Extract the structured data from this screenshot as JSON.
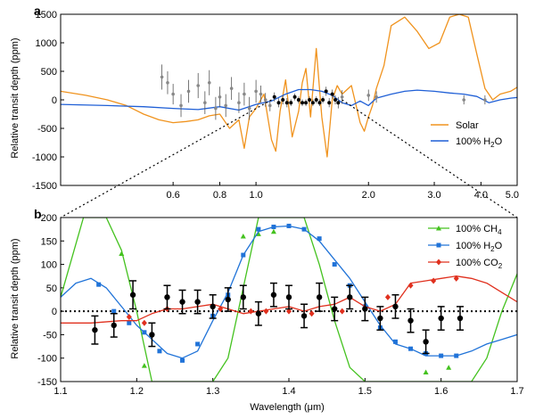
{
  "chart_data": [
    {
      "type": "line",
      "panel_label": "a",
      "xlabel": "",
      "ylabel": "Relative transit depth (ppm)",
      "xscale": "log",
      "xlim": [
        0.3,
        5.0
      ],
      "ylim": [
        -1500,
        1500
      ],
      "xticks": [
        0.6,
        0.8,
        1.0,
        2.0,
        3.0,
        4.0,
        5.0
      ],
      "xtick_labels": [
        "0.6",
        "0.8",
        "1.0",
        "2.0",
        "3.0",
        "4.0",
        "5.0"
      ],
      "yticks": [
        -1500,
        -1000,
        -500,
        0,
        500,
        1000,
        1500
      ],
      "legend_position": "bottom-right",
      "series": [
        {
          "name": "Solar",
          "color": "#f0931e",
          "x": [
            0.3,
            0.35,
            0.4,
            0.45,
            0.5,
            0.55,
            0.6,
            0.65,
            0.7,
            0.75,
            0.8,
            0.85,
            0.9,
            0.93,
            0.96,
            1.0,
            1.05,
            1.1,
            1.13,
            1.16,
            1.2,
            1.25,
            1.3,
            1.33,
            1.36,
            1.4,
            1.45,
            1.5,
            1.55,
            1.6,
            1.65,
            1.7,
            1.8,
            1.9,
            1.95,
            2.0,
            2.05,
            2.1,
            2.2,
            2.3,
            2.5,
            2.7,
            2.9,
            3.1,
            3.3,
            3.5,
            3.7,
            3.9,
            4.1,
            4.3,
            4.5,
            4.8,
            5.0
          ],
          "y": [
            150,
            80,
            0,
            -100,
            -250,
            -350,
            -400,
            -380,
            -350,
            -280,
            -250,
            -500,
            -350,
            -850,
            -300,
            -150,
            100,
            -700,
            -900,
            -200,
            350,
            -650,
            -200,
            300,
            550,
            -300,
            900,
            -300,
            -1000,
            0,
            250,
            100,
            250,
            -400,
            -550,
            -300,
            -100,
            200,
            600,
            1300,
            1450,
            1200,
            900,
            1000,
            1450,
            1500,
            1450,
            800,
            200,
            0,
            100,
            150,
            220
          ]
        },
        {
          "name": "100% H₂O",
          "color": "#1f5fd6",
          "x": [
            0.3,
            0.4,
            0.5,
            0.6,
            0.7,
            0.8,
            0.9,
            1.0,
            1.1,
            1.2,
            1.3,
            1.4,
            1.5,
            1.6,
            1.7,
            1.8,
            1.9,
            2.0,
            2.1,
            2.3,
            2.5,
            2.7,
            3.0,
            3.3,
            3.6,
            3.9,
            4.2,
            4.5,
            4.8,
            5.0
          ],
          "y": [
            -80,
            -100,
            -120,
            -150,
            -170,
            -120,
            -180,
            -80,
            -20,
            100,
            180,
            180,
            150,
            80,
            -50,
            -100,
            -20,
            -100,
            30,
            100,
            150,
            170,
            150,
            120,
            100,
            60,
            -50,
            0,
            30,
            40
          ]
        }
      ],
      "observations": {
        "x": [
          0.56,
          0.58,
          0.6,
          0.63,
          0.66,
          0.7,
          0.73,
          0.75,
          0.78,
          0.8,
          0.83,
          0.86,
          0.9,
          0.93,
          0.96,
          1.0,
          1.03,
          1.06,
          1.09,
          1.12,
          1.15,
          1.18,
          1.21,
          1.24,
          1.27,
          1.3,
          1.33,
          1.36,
          1.39,
          1.42,
          1.45,
          1.48,
          1.51,
          1.54,
          1.57,
          1.6,
          1.63,
          1.66,
          1.7,
          2.0,
          2.1,
          3.6,
          4.1
        ],
        "y": [
          400,
          300,
          100,
          -100,
          150,
          250,
          -50,
          300,
          -150,
          50,
          -100,
          200,
          -50,
          100,
          -150,
          150,
          100,
          0,
          -100,
          50,
          -50,
          0,
          -50,
          -50,
          50,
          0,
          -50,
          -50,
          0,
          -50,
          0,
          -50,
          0,
          150,
          -50,
          100,
          0,
          -50,
          50,
          80,
          50,
          0,
          0
        ],
        "yerr": [
          220,
          200,
          180,
          200,
          200,
          220,
          200,
          220,
          200,
          180,
          200,
          200,
          180,
          200,
          200,
          200,
          150,
          120,
          100,
          80,
          80,
          80,
          80,
          60,
          60,
          60,
          60,
          60,
          60,
          60,
          60,
          60,
          60,
          80,
          80,
          80,
          80,
          100,
          120,
          100,
          100,
          80,
          80
        ]
      }
    },
    {
      "type": "line",
      "panel_label": "b",
      "xlabel": "Wavelength (μm)",
      "ylabel": "Relative transit depth (ppm)",
      "xlim": [
        1.1,
        1.7
      ],
      "ylim": [
        -150,
        200
      ],
      "xticks": [
        1.1,
        1.2,
        1.3,
        1.4,
        1.5,
        1.6,
        1.7
      ],
      "yticks": [
        -150,
        -100,
        -50,
        0,
        50,
        100,
        150,
        200
      ],
      "legend_position": "top-right",
      "series": [
        {
          "name": "100% CH₄",
          "color": "#44c21f",
          "marker": "triangle",
          "x": [
            1.1,
            1.13,
            1.16,
            1.18,
            1.2,
            1.22,
            1.24,
            1.26,
            1.28,
            1.3,
            1.32,
            1.34,
            1.36,
            1.38,
            1.4,
            1.42,
            1.44,
            1.46,
            1.48,
            1.5,
            1.52,
            1.55,
            1.58,
            1.6,
            1.62,
            1.64,
            1.66,
            1.68,
            1.7
          ],
          "y": [
            30,
            200,
            200,
            130,
            0,
            -150,
            -150,
            -150,
            -150,
            -150,
            -100,
            50,
            200,
            200,
            200,
            200,
            100,
            -20,
            -120,
            -150,
            -150,
            -150,
            -150,
            -150,
            -150,
            -150,
            -100,
            0,
            80
          ],
          "marker_x": [
            1.18,
            1.21,
            1.34,
            1.36,
            1.38,
            1.58,
            1.61
          ],
          "marker_y": [
            123,
            -116,
            160,
            165,
            170,
            -130,
            -120
          ]
        },
        {
          "name": "100% H₂O",
          "color": "#2073d8",
          "marker": "square",
          "x": [
            1.1,
            1.12,
            1.14,
            1.16,
            1.18,
            1.2,
            1.22,
            1.24,
            1.26,
            1.28,
            1.3,
            1.32,
            1.34,
            1.36,
            1.38,
            1.4,
            1.42,
            1.44,
            1.46,
            1.48,
            1.5,
            1.52,
            1.54,
            1.56,
            1.58,
            1.6,
            1.62,
            1.64,
            1.66,
            1.68,
            1.7
          ],
          "y": [
            30,
            60,
            70,
            50,
            10,
            -30,
            -60,
            -90,
            -100,
            -85,
            -20,
            40,
            120,
            170,
            180,
            182,
            175,
            150,
            110,
            70,
            20,
            -30,
            -70,
            -80,
            -95,
            -95,
            -95,
            -85,
            -70,
            -60,
            -50
          ],
          "marker_x": [
            1.15,
            1.17,
            1.19,
            1.21,
            1.23,
            1.26,
            1.28,
            1.3,
            1.32,
            1.34,
            1.36,
            1.38,
            1.4,
            1.42,
            1.44,
            1.46,
            1.48,
            1.5,
            1.52,
            1.54,
            1.56,
            1.58,
            1.6,
            1.62
          ],
          "marker_y": [
            57,
            0,
            -25,
            -45,
            -85,
            -105,
            -70,
            -10,
            35,
            120,
            175,
            180,
            182,
            175,
            155,
            100,
            55,
            10,
            -35,
            -65,
            -80,
            -90,
            -95,
            -95
          ]
        },
        {
          "name": "100% CO₂",
          "color": "#e0301e",
          "marker": "diamond",
          "x": [
            1.1,
            1.14,
            1.18,
            1.2,
            1.22,
            1.24,
            1.26,
            1.28,
            1.3,
            1.32,
            1.34,
            1.36,
            1.38,
            1.4,
            1.42,
            1.44,
            1.46,
            1.48,
            1.5,
            1.52,
            1.54,
            1.56,
            1.58,
            1.6,
            1.62,
            1.64,
            1.66,
            1.68,
            1.7
          ],
          "y": [
            -25,
            -25,
            -20,
            -20,
            -5,
            5,
            5,
            10,
            15,
            5,
            -5,
            0,
            5,
            10,
            0,
            10,
            15,
            30,
            10,
            0,
            15,
            60,
            65,
            70,
            75,
            70,
            60,
            40,
            20
          ],
          "marker_x": [
            1.19,
            1.21,
            1.24,
            1.31,
            1.35,
            1.37,
            1.4,
            1.43,
            1.47,
            1.5,
            1.53,
            1.56,
            1.59,
            1.62
          ],
          "marker_y": [
            -12,
            -25,
            5,
            5,
            0,
            0,
            0,
            -5,
            0,
            5,
            30,
            55,
            65,
            70
          ]
        }
      ],
      "observations": {
        "x": [
          1.145,
          1.17,
          1.195,
          1.22,
          1.24,
          1.26,
          1.28,
          1.3,
          1.32,
          1.34,
          1.36,
          1.38,
          1.4,
          1.42,
          1.44,
          1.46,
          1.48,
          1.5,
          1.52,
          1.54,
          1.56,
          1.58,
          1.6,
          1.625
        ],
        "y": [
          -40,
          -30,
          35,
          -50,
          30,
          20,
          20,
          10,
          25,
          30,
          -5,
          35,
          30,
          -10,
          30,
          5,
          30,
          5,
          -15,
          10,
          -20,
          -65,
          -15,
          -15
        ],
        "yerr": [
          30,
          25,
          30,
          25,
          25,
          25,
          25,
          25,
          25,
          25,
          25,
          25,
          25,
          25,
          30,
          25,
          25,
          25,
          25,
          25,
          25,
          25,
          25,
          25
        ]
      },
      "reference_line": {
        "y": 0,
        "style": "dotted"
      }
    }
  ]
}
